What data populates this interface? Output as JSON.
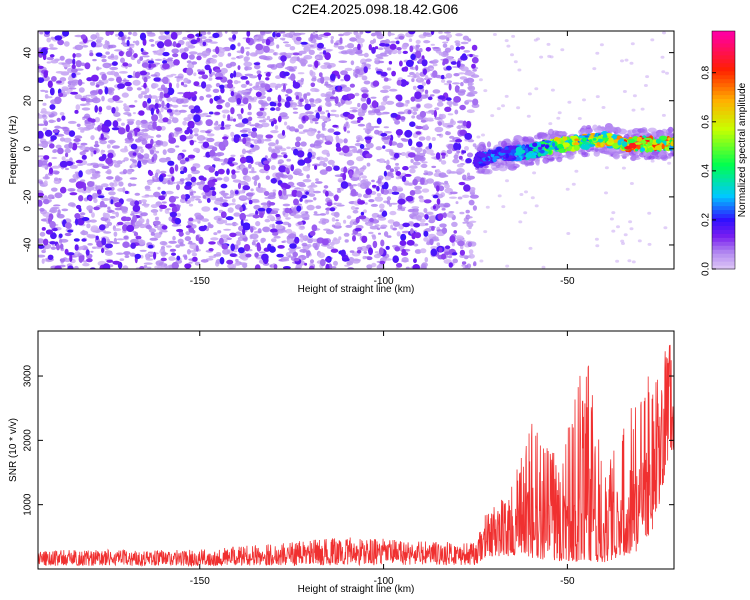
{
  "title": "C2E4.2025.098.18.42.G06",
  "chart_data": [
    {
      "type": "heatmap",
      "panel": "spectrogram",
      "xlabel": "Height of straight line (km)",
      "ylabel": "Frequency (Hz)",
      "xlim": [
        -194,
        -21
      ],
      "ylim": [
        -50,
        49
      ],
      "x_ticks": [
        -150,
        -100,
        -50
      ],
      "y_ticks": [
        -40,
        -20,
        0,
        20,
        40
      ],
      "colorbar": {
        "label": "Normalized spectral amplitude",
        "range": [
          0.0,
          0.97
        ],
        "ticks": [
          0.0,
          0.2,
          0.4,
          0.6,
          0.8
        ],
        "colormap": "rainbow (violet-blue-cyan-green-yellow-red-magenta)"
      },
      "noise_region": {
        "x": [
          -194,
          -75
        ],
        "freq": [
          -50,
          49
        ],
        "amplitude": "0.1-0.3",
        "color": "#7a1ff0"
      },
      "signal_track": [
        {
          "x": -75,
          "freq": -5,
          "amp": 0.25
        },
        {
          "x": -70,
          "freq": -3,
          "amp": 0.3
        },
        {
          "x": -65,
          "freq": -2,
          "amp": 0.3
        },
        {
          "x": -60,
          "freq": -1,
          "amp": 0.4
        },
        {
          "x": -55,
          "freq": 1,
          "amp": 0.6
        },
        {
          "x": -50,
          "freq": 2,
          "amp": 0.7
        },
        {
          "x": -45,
          "freq": 3,
          "amp": 0.75
        },
        {
          "x": -40,
          "freq": 4,
          "amp": 0.7
        },
        {
          "x": -35,
          "freq": 2,
          "amp": 0.8
        },
        {
          "x": -30,
          "freq": 2,
          "amp": 0.9
        },
        {
          "x": -25,
          "freq": 2,
          "amp": 0.85
        },
        {
          "x": -21,
          "freq": 2,
          "amp": 0.8
        }
      ]
    },
    {
      "type": "line",
      "panel": "snr",
      "xlabel": "Height of straight line (km)",
      "ylabel": "SNR (10 * v/v)",
      "xlim": [
        -194,
        -21
      ],
      "ylim": [
        0,
        3700
      ],
      "x_ticks": [
        -150,
        -100,
        -50
      ],
      "y_ticks": [
        1000,
        2000,
        3000
      ],
      "color": "#f03030",
      "envelope": [
        {
          "x": -194,
          "low": 50,
          "high": 300
        },
        {
          "x": -150,
          "low": 50,
          "high": 300
        },
        {
          "x": -110,
          "low": 60,
          "high": 500
        },
        {
          "x": -75,
          "low": 60,
          "high": 400
        },
        {
          "x": -72,
          "low": 200,
          "high": 900
        },
        {
          "x": -65,
          "low": 200,
          "high": 1300
        },
        {
          "x": -60,
          "low": 150,
          "high": 2300
        },
        {
          "x": -55,
          "low": 150,
          "high": 1900
        },
        {
          "x": -50,
          "low": 100,
          "high": 2400
        },
        {
          "x": -45,
          "low": 120,
          "high": 3400
        },
        {
          "x": -40,
          "low": 100,
          "high": 1900
        },
        {
          "x": -35,
          "low": 200,
          "high": 2200
        },
        {
          "x": -30,
          "low": 300,
          "high": 3100
        },
        {
          "x": -26,
          "low": 700,
          "high": 2900
        },
        {
          "x": -22,
          "low": 1900,
          "high": 3700
        },
        {
          "x": -21,
          "low": 1500,
          "high": 2500
        }
      ]
    }
  ]
}
